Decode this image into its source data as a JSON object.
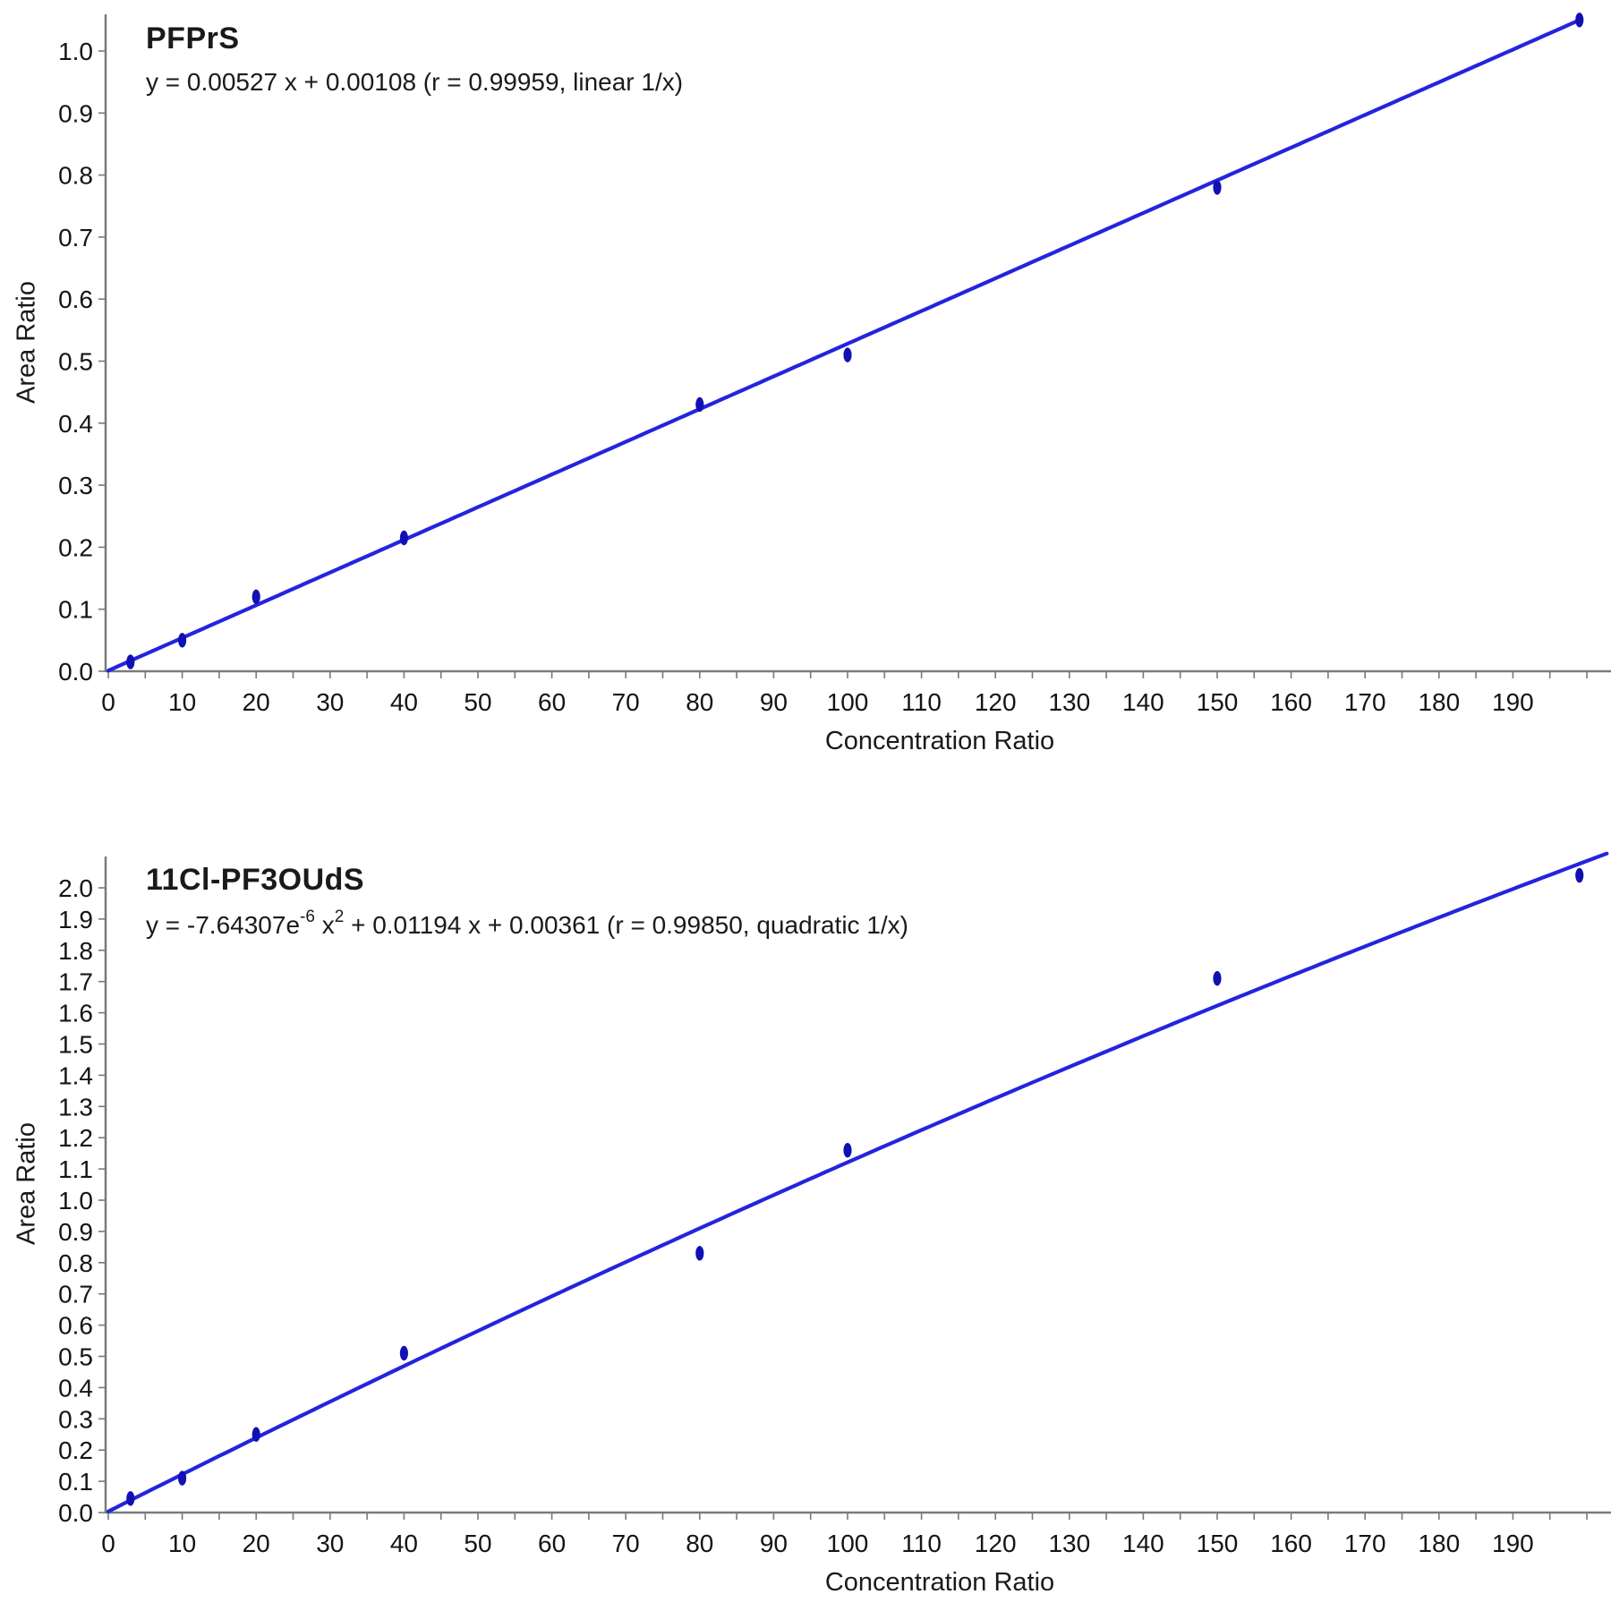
{
  "figure": {
    "background": "#ffffff",
    "n_charts": 2
  },
  "colors": {
    "fit_line": "#2424de",
    "marker": "#1010b4",
    "axis": "#7a7a7a",
    "text": "#141414"
  },
  "chart_data": [
    {
      "type": "scatter",
      "title": "PFPrS",
      "equation_parts": [
        "y = 0.00527 x + 0.00108 (r = 0.99959, linear 1/x)"
      ],
      "xlabel": "Concentration Ratio",
      "ylabel": "Area Ratio",
      "xlim": [
        0,
        203
      ],
      "ylim": [
        0,
        1.06
      ],
      "grid": false,
      "legend": "none",
      "x_tick_labels": [
        "0",
        "10",
        "20",
        "30",
        "40",
        "50",
        "60",
        "70",
        "80",
        "90",
        "100",
        "110",
        "120",
        "130",
        "140",
        "150",
        "160",
        "170",
        "180",
        "190"
      ],
      "x_tick_label_step": 10,
      "x_minor_tick_step": 5,
      "y_tick_labels": [
        "0.0",
        "0.1",
        "0.2",
        "0.3",
        "0.4",
        "0.5",
        "0.6",
        "0.7",
        "0.8",
        "0.9",
        "1.0"
      ],
      "y_tick_step": 0.1,
      "points": [
        [
          3,
          0.015
        ],
        [
          10,
          0.05
        ],
        [
          20,
          0.12
        ],
        [
          40,
          0.215
        ],
        [
          80,
          0.43
        ],
        [
          100,
          0.51
        ],
        [
          150,
          0.78
        ],
        [
          199,
          1.05
        ]
      ],
      "fit": {
        "kind": "linear",
        "coeffs": [
          0.00108,
          0.00527
        ],
        "r": 0.99959,
        "weighting": "1/x",
        "x_range": [
          0,
          199.3
        ]
      }
    },
    {
      "type": "scatter",
      "title": "11Cl-PF3OUdS",
      "equation_parts": [
        "y = -7.64307e",
        "-6",
        " x",
        "2",
        " + 0.01194 x + 0.00361 (r = 0.99850, quadratic 1/x)"
      ],
      "xlabel": "Concentration Ratio",
      "ylabel": "Area Ratio",
      "xlim": [
        0,
        203
      ],
      "ylim": [
        0,
        2.1
      ],
      "grid": false,
      "legend": "none",
      "x_tick_labels": [
        "0",
        "10",
        "20",
        "30",
        "40",
        "50",
        "60",
        "70",
        "80",
        "90",
        "100",
        "110",
        "120",
        "130",
        "140",
        "150",
        "160",
        "170",
        "180",
        "190"
      ],
      "x_tick_label_step": 10,
      "x_minor_tick_step": 5,
      "y_tick_labels": [
        "0.0",
        "0.1",
        "0.2",
        "0.3",
        "0.4",
        "0.5",
        "0.6",
        "0.7",
        "0.8",
        "0.9",
        "1.0",
        "1.1",
        "1.2",
        "1.3",
        "1.4",
        "1.5",
        "1.6",
        "1.7",
        "1.8",
        "1.9",
        "2.0"
      ],
      "y_tick_step": 0.1,
      "points": [
        [
          3,
          0.045
        ],
        [
          10,
          0.11
        ],
        [
          20,
          0.25
        ],
        [
          40,
          0.51
        ],
        [
          80,
          0.83
        ],
        [
          100,
          1.16
        ],
        [
          150,
          1.71
        ],
        [
          199,
          2.04
        ]
      ],
      "fit": {
        "kind": "quadratic",
        "coeffs": [
          0.00361,
          0.01194,
          -7.64307e-06
        ],
        "r": 0.9985,
        "weighting": "1/x",
        "x_range": [
          0,
          202.7
        ]
      }
    }
  ]
}
